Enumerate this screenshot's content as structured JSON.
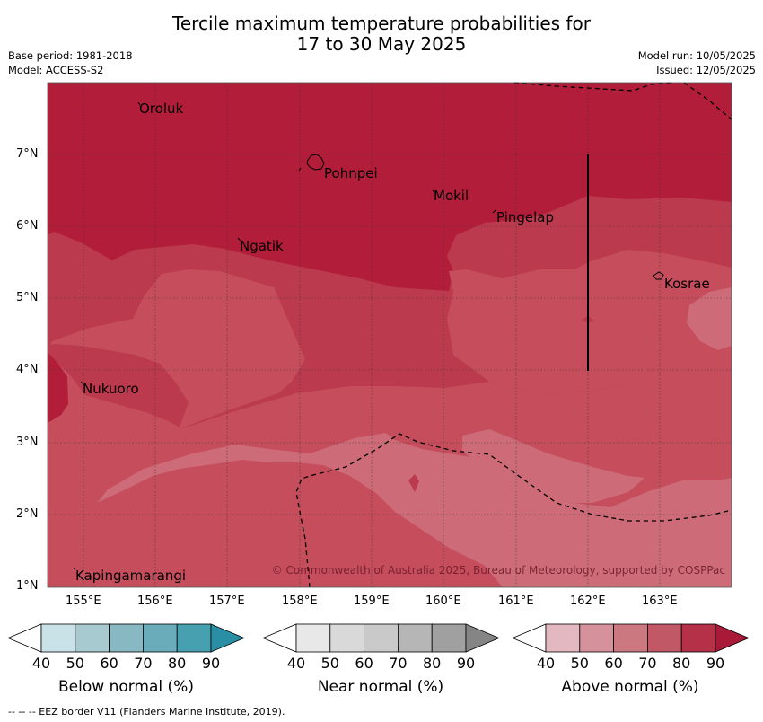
{
  "header": {
    "title_line1": "Tercile maximum temperature probabilities for",
    "title_line2": "17 to 30 May 2025",
    "base_period": "Base period: 1981-2018",
    "model": "Model: ACCESS-S2",
    "model_run": "Model run: 10/05/2025",
    "issued": "Issued: 12/05/2025"
  },
  "map": {
    "lon_labels": [
      "155°E",
      "156°E",
      "157°E",
      "158°E",
      "159°E",
      "160°E",
      "161°E",
      "162°E",
      "163°E"
    ],
    "lat_labels": [
      "7°N",
      "6°N",
      "5°N",
      "4°N",
      "3°N",
      "2°N",
      "1°N"
    ],
    "places": [
      "Oroluk",
      "Pohnpei",
      "Mokil",
      "Pingelap",
      "Ngatik",
      "Kosrae",
      "Nukuoro",
      "Kapingamarangi"
    ],
    "copyright": "© Commonwealth of Australia 2025, Bureau of Meteorology, supported by COSPPac"
  },
  "legends": [
    {
      "label": "Below normal (%)",
      "ticks": [
        "40",
        "50",
        "60",
        "70",
        "80",
        "90"
      ],
      "colors": [
        "#ffffff",
        "#c8e2e8",
        "#a6cad0",
        "#88b8c2",
        "#6aacba",
        "#47a0b0",
        "#2a8fa5"
      ]
    },
    {
      "label": "Near normal (%)",
      "ticks": [
        "40",
        "50",
        "60",
        "70",
        "80",
        "90"
      ],
      "colors": [
        "#ffffff",
        "#e8e8e8",
        "#d9d9d9",
        "#c9c9c9",
        "#b6b6b6",
        "#a0a0a0",
        "#858585"
      ]
    },
    {
      "label": "Above normal (%)",
      "ticks": [
        "40",
        "50",
        "60",
        "70",
        "80",
        "90"
      ],
      "colors": [
        "#ffffff",
        "#e4b8c0",
        "#d6929c",
        "#cc7880",
        "#c05866",
        "#b53148",
        "#a81a38"
      ]
    }
  ],
  "footer": {
    "eez_note": "--  --  -- EEZ border V11 (Flanders Marine Institute, 2019)."
  },
  "colors": {
    "c80": "#b21e3a",
    "c70": "#bc3a4e",
    "c60": "#c54d5c",
    "c50": "#cd6c78"
  }
}
